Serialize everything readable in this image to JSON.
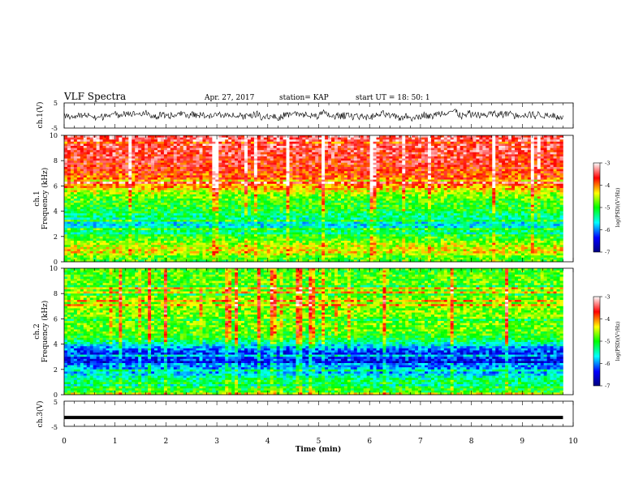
{
  "header": {
    "title": "VLF Spectra",
    "date": "Apr. 27, 2017",
    "station": "station= KAP",
    "start": "start  UT =   18: 50: 1"
  },
  "chart_data": [
    {
      "type": "line",
      "panel": "ch1-waveform",
      "ylabel": "ch.1(V)",
      "ylim": [
        -5,
        5
      ],
      "yticks": [
        5,
        -5
      ],
      "x_range": [
        0,
        9.8
      ],
      "series": [
        {
          "description_values": "noisy waveform centred near 0 V, amplitude about ±2 V",
          "mean": 0,
          "amplitude": 1.8
        }
      ]
    },
    {
      "type": "heatmap",
      "panel": "ch1-spectrogram",
      "ylabel": "Frequency (kHz)",
      "channel_label": "ch.1",
      "ylim": [
        0,
        10
      ],
      "yticks": [
        0,
        2,
        4,
        6,
        8,
        10
      ],
      "x_range": [
        0,
        9.8
      ],
      "colorbar": {
        "label": "log(PSD)(V²/Hz)",
        "range": [
          -7,
          -3
        ],
        "ticks": [
          -3,
          -4,
          -5,
          -6,
          -7
        ]
      },
      "level_profile": [
        {
          "f": 0.3,
          "level": -4.9
        },
        {
          "f": 0.8,
          "level": -4.3
        },
        {
          "f": 1.3,
          "level": -4.5
        },
        {
          "f": 1.8,
          "level": -4.9
        },
        {
          "f": 2.2,
          "level": -5.0
        },
        {
          "f": 2.7,
          "level": -5.6
        },
        {
          "f": 3.1,
          "level": -5.6
        },
        {
          "f": 3.6,
          "level": -5.3
        },
        {
          "f": 4.2,
          "level": -5.0
        },
        {
          "f": 4.8,
          "level": -4.9
        },
        {
          "f": 5.3,
          "level": -4.7
        },
        {
          "f": 6.0,
          "level": -4.0
        },
        {
          "f": 7.0,
          "level": -3.8
        },
        {
          "f": 8.0,
          "level": -3.6
        },
        {
          "f": 9.0,
          "level": -3.5
        },
        {
          "f": 10.0,
          "level": -3.4
        }
      ]
    },
    {
      "type": "heatmap",
      "panel": "ch2-spectrogram",
      "ylabel": "Frequency (kHz)",
      "channel_label": "ch.2",
      "ylim": [
        0,
        10
      ],
      "yticks": [
        0,
        2,
        4,
        6,
        8,
        10
      ],
      "x_range": [
        0,
        9.8
      ],
      "colorbar": {
        "label": "log(PSD)(V²/Hz)",
        "range": [
          -7,
          -3
        ],
        "ticks": [
          -3,
          -4,
          -5,
          -6,
          -7
        ]
      },
      "level_profile": [
        {
          "f": 0.3,
          "level": -5.0
        },
        {
          "f": 0.8,
          "level": -5.1
        },
        {
          "f": 1.3,
          "level": -5.4
        },
        {
          "f": 1.8,
          "level": -5.9
        },
        {
          "f": 2.3,
          "level": -5.9
        },
        {
          "f": 2.8,
          "level": -6.3
        },
        {
          "f": 3.3,
          "level": -6.3
        },
        {
          "f": 3.8,
          "level": -5.8
        },
        {
          "f": 4.4,
          "level": -5.1
        },
        {
          "f": 5.0,
          "level": -4.8
        },
        {
          "f": 5.6,
          "level": -4.8
        },
        {
          "f": 6.5,
          "level": -4.7
        },
        {
          "f": 7.5,
          "level": -4.7
        },
        {
          "f": 8.5,
          "level": -4.8
        },
        {
          "f": 10.0,
          "level": -4.9
        }
      ]
    },
    {
      "type": "line",
      "panel": "ch3-waveform",
      "ylabel": "ch.3(V)",
      "ylim": [
        -5,
        5
      ],
      "yticks": [
        5,
        -5
      ],
      "x_range": [
        0,
        9.8
      ],
      "series": [
        {
          "constant": -1.5
        }
      ]
    }
  ],
  "x_axis": {
    "label": "Time (min)",
    "ticks": [
      "0",
      "1",
      "2",
      "3",
      "4",
      "5",
      "6",
      "7",
      "8",
      "9",
      "10"
    ],
    "range": [
      0,
      10
    ]
  },
  "colors": {
    "colormap": [
      "#00007f",
      "#0000ff",
      "#00ffff",
      "#00ff00",
      "#ffff00",
      "#ff0000",
      "#ffffff"
    ]
  }
}
